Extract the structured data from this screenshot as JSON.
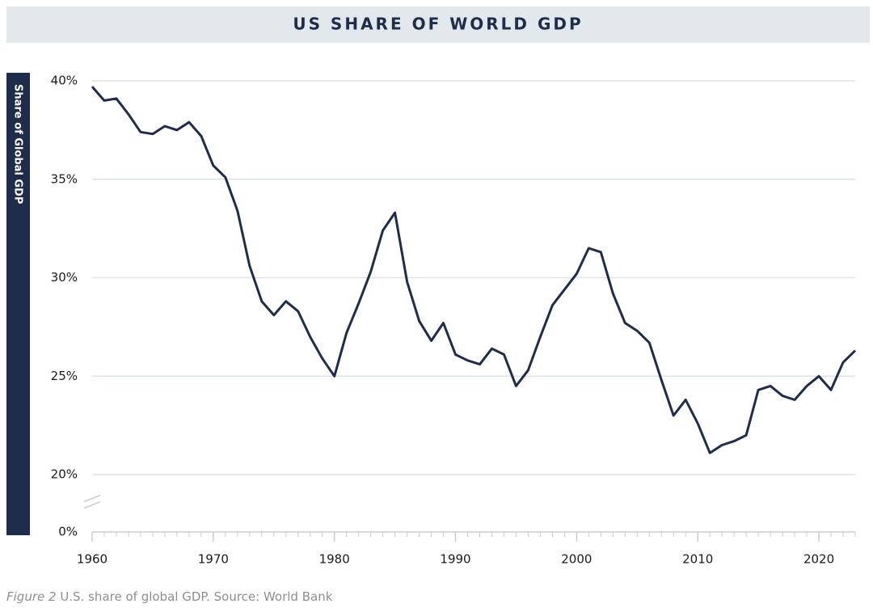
{
  "chart_data": {
    "type": "line",
    "title": "US SHARE OF WORLD GDP",
    "y_label": "Share of Global GDP",
    "caption_label": "Figure 2",
    "caption": "U.S. share of global GDP.  Source: World Bank",
    "x": [
      1960,
      1961,
      1962,
      1963,
      1964,
      1965,
      1966,
      1967,
      1968,
      1969,
      1970,
      1971,
      1972,
      1973,
      1974,
      1975,
      1976,
      1977,
      1978,
      1979,
      1980,
      1981,
      1982,
      1983,
      1984,
      1985,
      1986,
      1987,
      1988,
      1989,
      1990,
      1991,
      1992,
      1993,
      1994,
      1995,
      1996,
      1997,
      1998,
      1999,
      2000,
      2001,
      2002,
      2003,
      2004,
      2005,
      2006,
      2007,
      2008,
      2009,
      2010,
      2011,
      2012,
      2013,
      2014,
      2015,
      2016,
      2017,
      2018,
      2019,
      2020,
      2021,
      2022,
      2023
    ],
    "series": [
      {
        "name": "US share of world GDP",
        "color": "#1f2d4a",
        "values": [
          39.7,
          39.0,
          39.1,
          38.3,
          37.4,
          37.3,
          37.7,
          37.5,
          37.9,
          37.2,
          35.7,
          35.1,
          33.4,
          30.6,
          28.8,
          28.1,
          28.8,
          28.3,
          27.0,
          25.9,
          25.0,
          27.2,
          28.7,
          30.3,
          32.4,
          33.3,
          29.8,
          27.8,
          26.8,
          27.7,
          26.1,
          25.8,
          25.6,
          26.4,
          26.1,
          24.5,
          25.3,
          27.0,
          28.6,
          29.4,
          30.2,
          31.5,
          31.3,
          29.2,
          27.7,
          27.3,
          26.7,
          24.8,
          23.0,
          23.8,
          22.6,
          21.1,
          21.5,
          21.7,
          22.0,
          24.3,
          24.5,
          24.0,
          23.8,
          24.5,
          25.0,
          24.3,
          25.7,
          26.3
        ]
      }
    ],
    "xlim": [
      1960,
      2023
    ],
    "xticks": [
      1960,
      1970,
      1980,
      1990,
      2000,
      2010,
      2020
    ],
    "ylim": [
      0,
      40
    ],
    "y_break": [
      0,
      20
    ],
    "yticks": [
      {
        "value": 0,
        "label": "0%"
      },
      {
        "value": 20,
        "label": "20%"
      },
      {
        "value": 25,
        "label": "25%"
      },
      {
        "value": 30,
        "label": "30%"
      },
      {
        "value": 35,
        "label": "35%"
      },
      {
        "value": 40,
        "label": "40%"
      }
    ],
    "grid": true
  }
}
